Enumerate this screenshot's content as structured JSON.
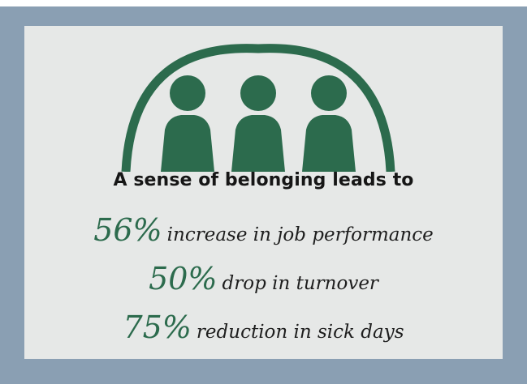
{
  "colors": {
    "frame": "#8a9fb3",
    "panel": "#e6e8e7",
    "accent_green": "#2c6b4d",
    "text": "#1e1e1e"
  },
  "illustration": {
    "icon": "group-of-people-icon",
    "people_count": 3
  },
  "headline": "A sense of belonging leads to",
  "stats": [
    {
      "value": "56%",
      "text": "increase in job performance"
    },
    {
      "value": "50%",
      "text": "drop in turnover"
    },
    {
      "value": "75%",
      "text": "reduction in sick days"
    }
  ]
}
